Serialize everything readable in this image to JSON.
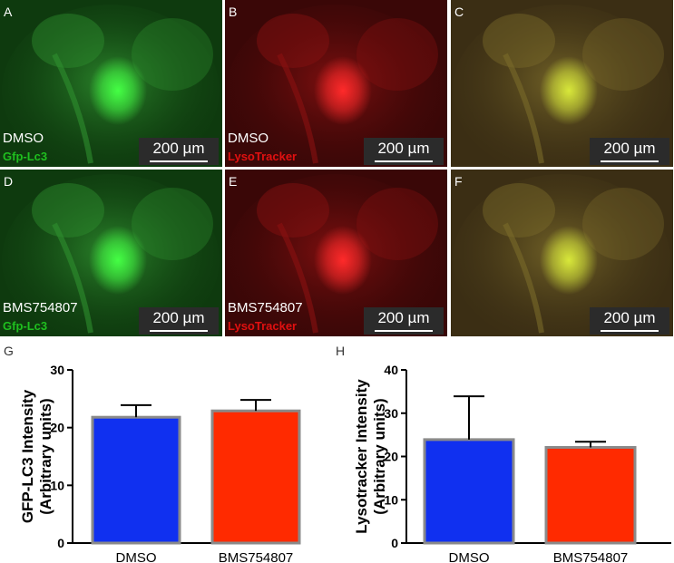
{
  "panels": [
    {
      "id": "A",
      "condition": "DMSO",
      "stain": "Gfp-Lc3",
      "stain_color": "#1fbf1f",
      "scale": "200 µm",
      "tint": "green"
    },
    {
      "id": "B",
      "condition": "DMSO",
      "stain": "LysoTracker",
      "stain_color": "#e01010",
      "scale": "200 µm",
      "tint": "red"
    },
    {
      "id": "C",
      "condition": "",
      "stain": "",
      "stain_color": "",
      "scale": "200 µm",
      "tint": "merge"
    },
    {
      "id": "D",
      "condition": "BMS754807",
      "stain": "Gfp-Lc3",
      "stain_color": "#1fbf1f",
      "scale": "200 µm",
      "tint": "green"
    },
    {
      "id": "E",
      "condition": "BMS754807",
      "stain": "LysoTracker",
      "stain_color": "#e01010",
      "scale": "200 µm",
      "tint": "red"
    },
    {
      "id": "F",
      "condition": "",
      "stain": "",
      "stain_color": "",
      "scale": "200 µm",
      "tint": "merge"
    }
  ],
  "chart_data": [
    {
      "panel": "G",
      "type": "bar",
      "categories": [
        "DMSO",
        "BMS754807"
      ],
      "values": [
        21.8,
        22.9
      ],
      "errors": [
        2.1,
        1.9
      ],
      "colors": [
        "#1030f0",
        "#ff2a00"
      ],
      "ylabel": "GFP-LC3 Intensity\n(Arbitrary units)",
      "ylim": [
        0,
        30
      ],
      "yticks": [
        0,
        10,
        20,
        30
      ]
    },
    {
      "panel": "H",
      "type": "bar",
      "categories": [
        "DMSO",
        "BMS754807"
      ],
      "values": [
        23.9,
        22.1
      ],
      "errors": [
        10.0,
        1.3
      ],
      "colors": [
        "#1030f0",
        "#ff2a00"
      ],
      "ylabel": "Lysotracker Intensity\n(Arbitrary units)",
      "ylim": [
        0,
        40
      ],
      "yticks": [
        0,
        10,
        20,
        30,
        40
      ]
    }
  ]
}
